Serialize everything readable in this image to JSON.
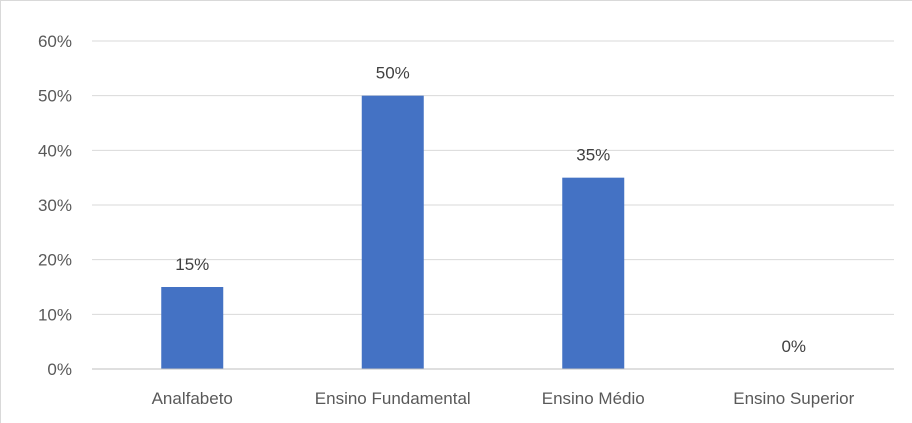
{
  "chart_data": {
    "type": "bar",
    "categories": [
      "Analfabeto",
      "Ensino Fundamental",
      "Ensino Médio",
      "Ensino Superior"
    ],
    "values": [
      15,
      50,
      35,
      0
    ],
    "data_labels": [
      "15%",
      "50%",
      "35%",
      "0%"
    ],
    "title": "",
    "xlabel": "",
    "ylabel": "",
    "ylim": [
      0,
      60
    ],
    "y_ticks": [
      0,
      10,
      20,
      30,
      40,
      50,
      60
    ],
    "y_tick_labels": [
      "0%",
      "10%",
      "20%",
      "30%",
      "40%",
      "50%",
      "60%"
    ],
    "grid": true,
    "legend": "none",
    "colors": {
      "bar": "#4472c4",
      "grid": "#d9d9d9",
      "axis": "#bfbfbf"
    }
  }
}
